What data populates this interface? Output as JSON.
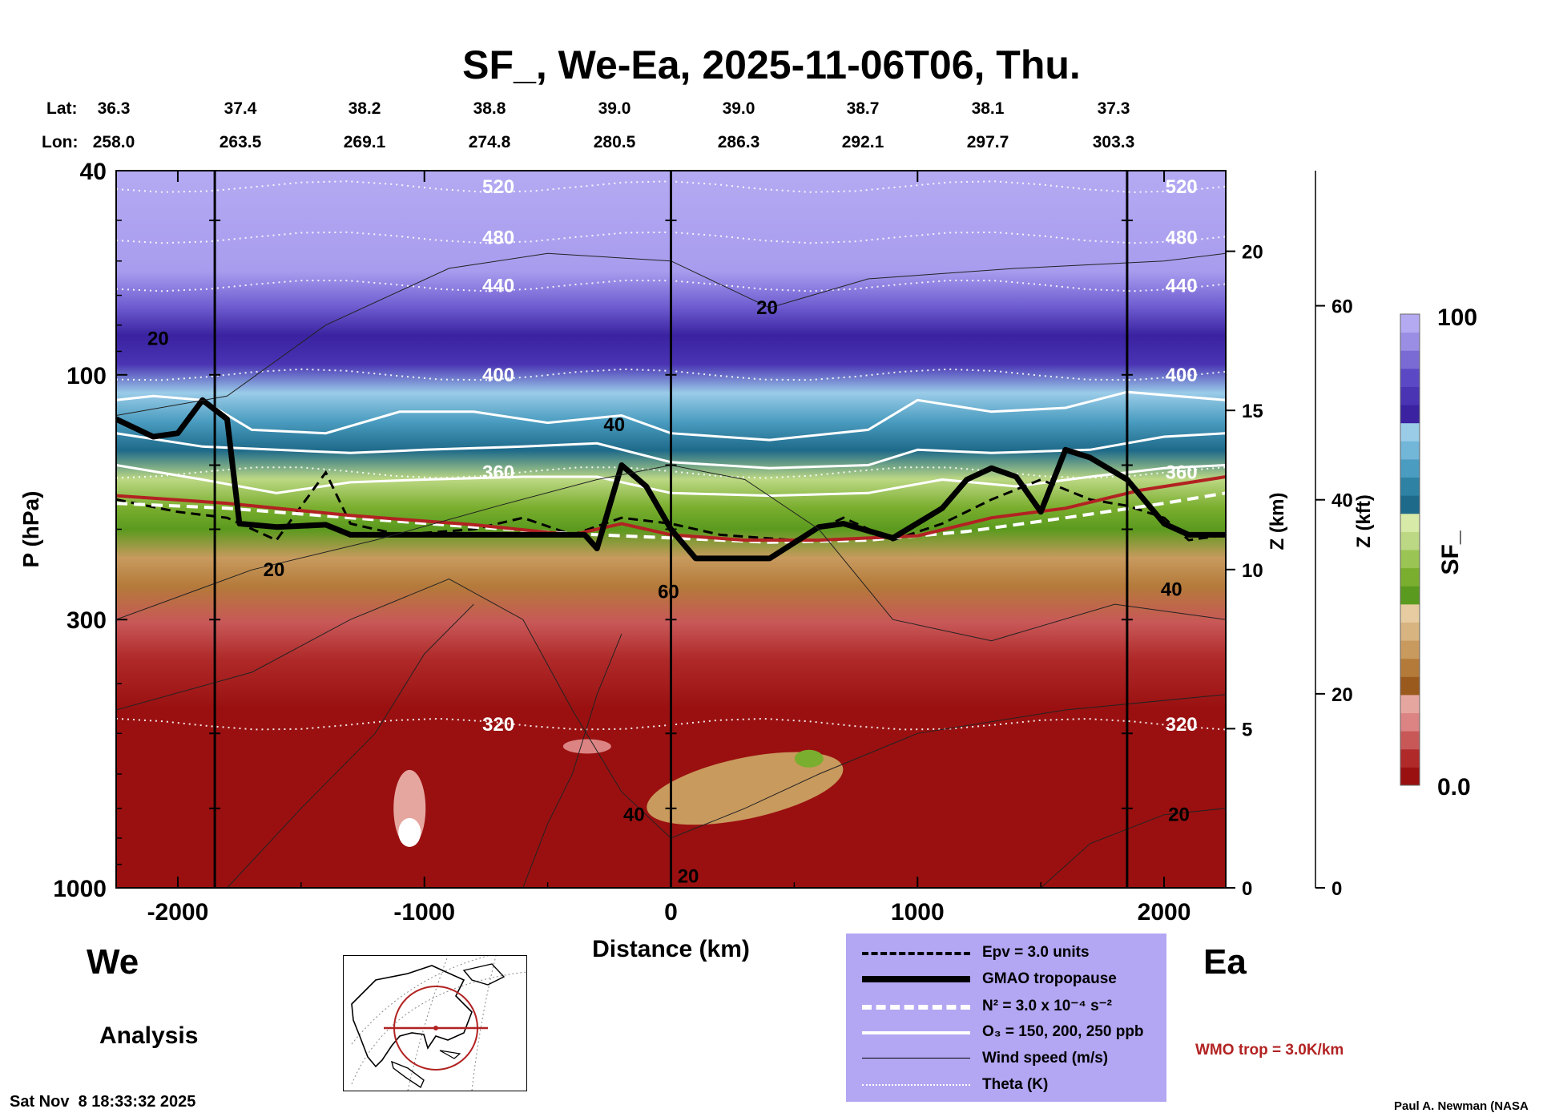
{
  "title": "SF_, We-Ea, 2025-11-06T06, Thu.",
  "header": {
    "lat_label": "Lat:",
    "lon_label": "Lon:",
    "lats": [
      "36.3",
      "37.4",
      "38.2",
      "38.8",
      "39.0",
      "39.0",
      "38.7",
      "38.1",
      "37.3"
    ],
    "lons": [
      "258.0",
      "263.5",
      "269.1",
      "274.8",
      "280.5",
      "286.3",
      "292.1",
      "297.7",
      "303.3"
    ]
  },
  "labels": {
    "west": "We",
    "east": "Ea",
    "analysis": "Analysis",
    "timestamp": "Sat Nov  8 18:33:32 2025",
    "credit": "Paul A. Newman (NASA",
    "wmo_trop": "WMO trop = 3.0K/km"
  },
  "legend": {
    "items": [
      {
        "label": "Epv = 3.0 units",
        "style": "dashed-black"
      },
      {
        "label": "GMAO tropopause",
        "style": "thick-black"
      },
      {
        "label": "N² = 3.0 x 10⁻⁴ s⁻²",
        "style": "dashed-white"
      },
      {
        "label": "O₃ = 150, 200, 250 ppb",
        "style": "solid-white"
      },
      {
        "label": "Wind speed (m/s)",
        "style": "thin-black"
      },
      {
        "label": "Theta (K)",
        "style": "dotted-white"
      }
    ]
  },
  "colorbar": {
    "label": "SF_",
    "max_label": "100",
    "min_label": "0.0",
    "colors": [
      "#9a1010",
      "#b02a2a",
      "#c85858",
      "#dc8484",
      "#e6a6a0",
      "#9a5a1e",
      "#b47a3a",
      "#c89a5e",
      "#d8b480",
      "#e6cca0",
      "#5a9a1e",
      "#7aae2e",
      "#9ac454",
      "#bcd884",
      "#d8eaa8",
      "#1e6a8a",
      "#2e82a4",
      "#4a9cc0",
      "#72b6d8",
      "#9acce8",
      "#3a22a0",
      "#4a34b4",
      "#5a48c4",
      "#7a6ad4",
      "#9a8ee4",
      "#b4aaf2"
    ]
  },
  "chart_data": {
    "type": "heatmap",
    "title": "SF_, We-Ea, 2025-11-06T06, Thu.",
    "xlabel": "Distance (km)",
    "ylabel": "P (hPa)",
    "xlim": [
      -2250,
      2250
    ],
    "ylim": [
      1000,
      40
    ],
    "x_ticks": [
      -2000,
      -1000,
      0,
      1000,
      2000
    ],
    "x_tick_labels": [
      "-2000",
      "-1000",
      "0",
      "1000",
      "2000"
    ],
    "y_ticks": [
      40,
      100,
      300,
      1000
    ],
    "y_tick_labels": [
      "40",
      "100",
      "300",
      "1000"
    ],
    "z_km": {
      "label": "Z (km)",
      "ticks": [
        0,
        5,
        10,
        15,
        20
      ],
      "tick_labels": [
        "0",
        "5",
        "10",
        "15",
        "20"
      ]
    },
    "z_kft": {
      "label": "Z (kft)",
      "ticks": [
        0,
        20,
        40,
        60
      ],
      "tick_labels": [
        "0",
        "20",
        "40",
        "60"
      ]
    },
    "vertical_lines_km": [
      -1850,
      0,
      1850
    ],
    "theta_levels": [
      {
        "label": "520",
        "p": 43
      },
      {
        "label": "480",
        "p": 54
      },
      {
        "label": "440",
        "p": 67
      },
      {
        "label": "400",
        "p": 100
      },
      {
        "label": "360",
        "p": 155
      },
      {
        "label": "320",
        "p": 480
      }
    ],
    "wind_labels": [
      {
        "label": "20",
        "x": -2080,
        "p": 85
      },
      {
        "label": "20",
        "x": 390,
        "p": 74
      },
      {
        "label": "40",
        "x": -230,
        "p": 125
      },
      {
        "label": "20",
        "x": -1610,
        "p": 240
      },
      {
        "label": "60",
        "x": -10,
        "p": 265
      },
      {
        "label": "40",
        "x": 2030,
        "p": 262
      },
      {
        "label": "40",
        "x": -150,
        "p": 720
      },
      {
        "label": "20",
        "x": 2060,
        "p": 720
      },
      {
        "label": "20",
        "x": 70,
        "p": 950
      }
    ],
    "tropopause_p": [
      [
        -2250,
        122
      ],
      [
        -2100,
        132
      ],
      [
        -2000,
        130
      ],
      [
        -1900,
        112
      ],
      [
        -1800,
        122
      ],
      [
        -1750,
        195
      ],
      [
        -1600,
        198
      ],
      [
        -1400,
        196
      ],
      [
        -1300,
        205
      ],
      [
        -900,
        205
      ],
      [
        -600,
        205
      ],
      [
        -350,
        205
      ],
      [
        -300,
        218
      ],
      [
        -200,
        150
      ],
      [
        -100,
        165
      ],
      [
        0,
        200
      ],
      [
        100,
        228
      ],
      [
        400,
        228
      ],
      [
        600,
        198
      ],
      [
        700,
        195
      ],
      [
        900,
        208
      ],
      [
        1100,
        182
      ],
      [
        1200,
        160
      ],
      [
        1300,
        152
      ],
      [
        1400,
        158
      ],
      [
        1500,
        185
      ],
      [
        1600,
        140
      ],
      [
        1700,
        145
      ],
      [
        1850,
        160
      ],
      [
        2000,
        195
      ],
      [
        2100,
        205
      ],
      [
        2250,
        205
      ]
    ],
    "wmo_tropopause_p": [
      [
        -2250,
        172
      ],
      [
        -1800,
        178
      ],
      [
        -1300,
        188
      ],
      [
        -800,
        196
      ],
      [
        -400,
        205
      ],
      [
        -200,
        195
      ],
      [
        0,
        205
      ],
      [
        300,
        210
      ],
      [
        600,
        210
      ],
      [
        1000,
        206
      ],
      [
        1300,
        190
      ],
      [
        1600,
        182
      ],
      [
        1900,
        168
      ],
      [
        2250,
        158
      ]
    ]
  }
}
